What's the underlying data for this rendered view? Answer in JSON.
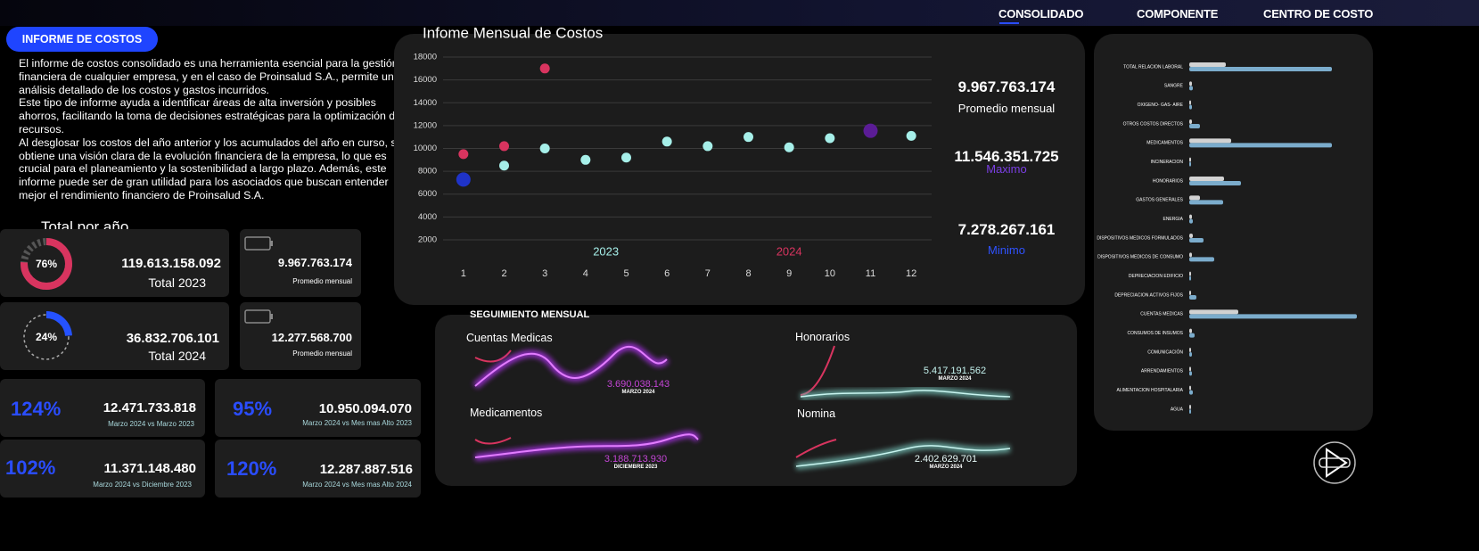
{
  "nav": {
    "items": [
      "CONSOLIDADO",
      "COMPONENTE",
      "CENTRO DE COSTO"
    ]
  },
  "header": {
    "button": "INFORME DE COSTOS"
  },
  "intro": {
    "paragraphs": [
      "El informe de costos consolidado es una herramienta esencial para la gestión financiera de cualquier empresa, y en el caso de Proinsalud S.A., permite un análisis detallado de los costos y gastos incurridos.",
      "Este tipo de informe ayuda a identificar áreas de alta inversión y posibles ahorros, facilitando la toma de decisiones estratégicas para la optimización de recursos.",
      "Al desglosar los costos del año anterior y los acumulados del año en curso, se obtiene una visión clara de la evolución financiera de la empresa, lo que es crucial para el planeamiento y la sostenibilidad a largo plazo. Además, este informe puede ser de gran utilidad para los asociados que buscan entender mejor el rendimiento financiero de Proinsalud S.A."
    ]
  },
  "totals": {
    "title": "Total por año",
    "years": [
      {
        "percent": {
          "value": 76,
          "label": "76%"
        },
        "color": "#d8345f",
        "total": "119.613.158.092",
        "label": "Total 2023",
        "average": "9.967.763.174",
        "average_label": "Promedio mensual"
      },
      {
        "percent": {
          "value": 24,
          "label": "24%"
        },
        "color": "#2552ff",
        "total": "36.832.706.101",
        "label": "Total 2024",
        "average": "12.277.568.700",
        "average_label": "Promedio mensual"
      }
    ]
  },
  "kpis": [
    {
      "percent": "124%",
      "value": "12.471.733.818",
      "caption": "Marzo 2024 vs Marzo 2023"
    },
    {
      "percent": "95%",
      "value": "10.950.094.070",
      "caption": "Marzo 2024 vs Mes mas Alto  2023"
    },
    {
      "percent": "102%",
      "value": "11.371.148.480",
      "caption": "Marzo 2024 vs Diciembre 2023"
    },
    {
      "percent": "120%",
      "value": "12.287.887.516",
      "caption": "Marzo 2024 vs Mes mas Alto  2024"
    }
  ],
  "monthly_stats": [
    {
      "value": "9.967.763.174",
      "label": "Promedio mensual"
    },
    {
      "value": "11.546.351.725",
      "label": "Maximo"
    },
    {
      "value": "7.278.267.161",
      "label": "Minimo"
    }
  ],
  "chart_data": [
    {
      "type": "scatter",
      "title": "Infome Mensual de Costos",
      "x": [
        1,
        2,
        3,
        4,
        5,
        6,
        7,
        8,
        9,
        10,
        11,
        12
      ],
      "xlim": [
        0.5,
        12.5
      ],
      "xticks": [
        1,
        2,
        3,
        4,
        5,
        6,
        7,
        8,
        9,
        10,
        11,
        12
      ],
      "ylim": [
        0,
        18000
      ],
      "yticks": [
        2000,
        4000,
        6000,
        8000,
        10000,
        12000,
        14000,
        16000,
        18000
      ],
      "grid": true,
      "series": [
        {
          "name": "2023",
          "color": "#a6efe9",
          "values": [
            7278,
            8500,
            10000,
            9000,
            9200,
            10600,
            10200,
            11000,
            10100,
            10900,
            11546,
            11100
          ],
          "point_colors": [
            "#1f33c8",
            "#a6efe9",
            "#a6efe9",
            "#a6efe9",
            "#a6efe9",
            "#a6efe9",
            "#a6efe9",
            "#a6efe9",
            "#a6efe9",
            "#a6efe9",
            "#5b1c96",
            "#a6efe9"
          ]
        },
        {
          "name": "2024",
          "color": "#d8345f",
          "values": [
            9500,
            10200,
            17000,
            null,
            null,
            null,
            null,
            null,
            null,
            null,
            null,
            null
          ]
        }
      ]
    },
    {
      "type": "hbar",
      "categories": [
        "TOTAL RELACION LABORAL",
        "SANGRE",
        "OXIGENO-   GAS-   AIRE",
        "OTROS COSTOS DIRECTOS",
        "MEDICAMENTOS",
        "INCINERACION",
        "HONORARIOS",
        "GASTOS GENERALES",
        "ENERGIA",
        "DISPOSITIVOS MEDICOS FORMULADOS",
        "DISPOSITIVOS MEDICOS DE CONSUMO",
        "DEPRECIACION EDIFICIO",
        "DEPRECIACION ACTIVOS FIJOS",
        "CUENTAS MEDICAS",
        "CONSUMOS DE INSUMOS",
        "COMUNICACIÓN",
        "ARRENDAMIENTOS",
        "ALIMENTACION HOSPITALARIA",
        "AGUA"
      ],
      "xlim": [
        0,
        200
      ],
      "series": [
        {
          "color": "#f2f2f2",
          "values": [
            41,
            3,
            2,
            3,
            47,
            2,
            39,
            12,
            3,
            4,
            3,
            2,
            2,
            55,
            3,
            2,
            2,
            2,
            2
          ]
        },
        {
          "color": "#86bde0",
          "values": [
            160,
            4,
            3,
            12,
            160,
            2,
            58,
            38,
            4,
            16,
            28,
            2,
            8,
            188,
            6,
            3,
            3,
            4,
            2
          ]
        }
      ]
    }
  ],
  "tracking": {
    "title": "SEGUIMIENTO MENSUAL",
    "panels": [
      {
        "title": "Cuentas Medicas",
        "value": "3.690.038.143",
        "period": "MARZO 2024"
      },
      {
        "title": "Honorarios",
        "value": "5.417.191.562",
        "period": "MARZO 2024"
      },
      {
        "title": "Medicamentos",
        "value": "3.188.713.930",
        "period": "DICIEMBRE 2023"
      },
      {
        "title": "Nomina",
        "value": "2.402.629.701",
        "period": "MARZO 2024"
      }
    ]
  }
}
